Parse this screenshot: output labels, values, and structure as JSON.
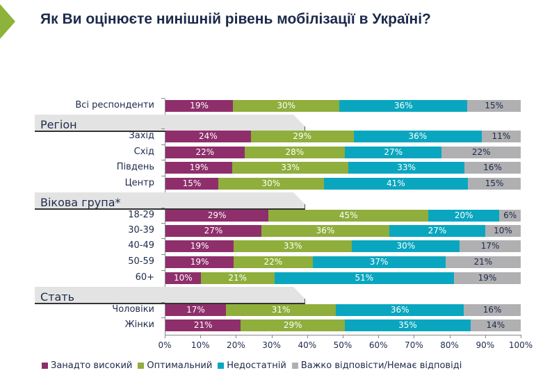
{
  "title": "Як Ви оцінюєте нинішній рівень мобілізації в Україні?",
  "chart_data": {
    "type": "bar",
    "orientation": "horizontal-stacked-100",
    "title": "Як Ви оцінюєте нинішній рівень мобілізації в Україні?",
    "series": [
      {
        "name": "Занадто високий",
        "color": "#8e2f6b"
      },
      {
        "name": "Оптимальний",
        "color": "#8fae3c"
      },
      {
        "name": "Недостатній",
        "color": "#0aa6bf"
      },
      {
        "name": "Важко відповісти/Немає відповіді",
        "color": "#b0b0b2"
      }
    ],
    "groups": [
      {
        "label": "",
        "rows": [
          {
            "category": "Всі респонденти",
            "values": [
              19,
              30,
              36,
              15
            ]
          }
        ]
      },
      {
        "label": "Регіон",
        "rows": [
          {
            "category": "Захід",
            "values": [
              24,
              29,
              36,
              11
            ]
          },
          {
            "category": "Схід",
            "values": [
              22,
              28,
              27,
              22
            ]
          },
          {
            "category": "Південь",
            "values": [
              19,
              33,
              33,
              16
            ]
          },
          {
            "category": "Центр",
            "values": [
              15,
              30,
              41,
              15
            ]
          }
        ]
      },
      {
        "label": "Вікова група*",
        "rows": [
          {
            "category": "18-29",
            "values": [
              29,
              45,
              20,
              6
            ]
          },
          {
            "category": "30-39",
            "values": [
              27,
              36,
              27,
              10
            ]
          },
          {
            "category": "40-49",
            "values": [
              19,
              33,
              30,
              17
            ]
          },
          {
            "category": "50-59",
            "values": [
              19,
              22,
              37,
              21
            ]
          },
          {
            "category": "60+",
            "values": [
              10,
              21,
              51,
              19
            ]
          }
        ]
      },
      {
        "label": "Стать",
        "rows": [
          {
            "category": "Чоловіки",
            "values": [
              17,
              31,
              36,
              16
            ]
          },
          {
            "category": "Жінки",
            "values": [
              21,
              29,
              35,
              14
            ]
          }
        ]
      }
    ],
    "xlim": [
      0,
      100
    ],
    "xticks": [
      "0%",
      "10%",
      "20%",
      "30%",
      "40%",
      "50%",
      "60%",
      "70%",
      "80%",
      "90%",
      "100%"
    ],
    "legend": "bottom",
    "grid": false
  }
}
